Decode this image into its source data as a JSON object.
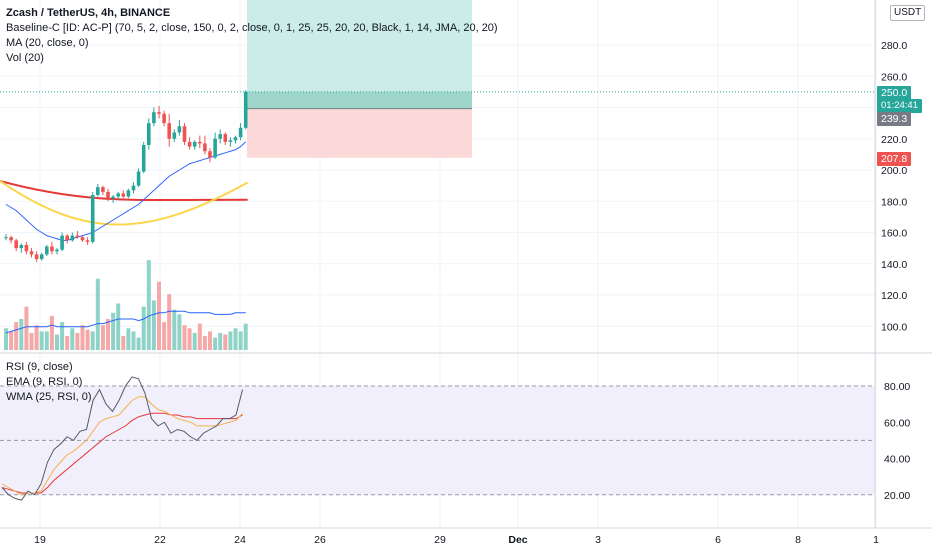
{
  "legend_main": {
    "symbol": "Zcash / TetherUS, 4h, BINANCE",
    "line2": "Baseline-C [ID: AC-P] (70, 5, 2, close, 150, 0, 2, close, 0, 1, 25, 25, 20, 20, Black, 1, 14, JMA, 20, 20)",
    "line3": "MA (20, close, 0)",
    "line4": "Vol (20)"
  },
  "legend_rsi": {
    "line1": "RSI (9, close)",
    "line2": "EMA (9, RSI, 0)",
    "line3": "WMA (25, RSI, 0)"
  },
  "currency": "USDT",
  "price_badges": {
    "current_price": "250.0",
    "countdown": "01:24:41",
    "level_239": "239.3",
    "level_207": "207.8"
  },
  "colors": {
    "up": "#26a69a",
    "down": "#ef5350",
    "vol_up": "#8fd3c8",
    "vol_down": "#f4a9a8",
    "ma": "#2962ff",
    "baseline_red": "#e53935",
    "baseline_yellow": "#fbd54a",
    "rsi": "#555a66",
    "rsi_ema": "#f4b24a",
    "rsi_wma": "#e53935",
    "profit_zone": "#cbece7",
    "loss_zone": "#fbd9d9"
  },
  "chart_data": {
    "type": "candlestick",
    "price_axis": {
      "ticks": [
        100,
        120,
        140,
        160,
        180,
        200,
        220,
        240,
        260,
        280
      ],
      "tick_labels": [
        "100.0",
        "120.0",
        "140.0",
        "160.0",
        "180.0",
        "200.0",
        "220.0",
        "240.0",
        "260.0",
        "280.0"
      ],
      "range": [
        90,
        304
      ]
    },
    "time_axis": {
      "labels": [
        "19",
        "22",
        "24",
        "26",
        "29",
        "Dec",
        "3",
        "6",
        "8",
        "1"
      ]
    },
    "candles": [
      [
        157,
        159,
        155,
        157
      ],
      [
        157,
        158,
        153,
        155
      ],
      [
        155,
        156,
        148,
        150
      ],
      [
        150,
        153,
        147,
        152
      ],
      [
        152,
        154,
        146,
        148
      ],
      [
        148,
        150,
        144,
        146
      ],
      [
        146,
        148,
        141,
        143
      ],
      [
        143,
        147,
        142,
        146
      ],
      [
        146,
        152,
        145,
        151
      ],
      [
        151,
        154,
        146,
        148
      ],
      [
        148,
        150,
        146,
        149
      ],
      [
        149,
        160,
        148,
        158
      ],
      [
        158,
        159,
        153,
        155
      ],
      [
        155,
        160,
        154,
        158
      ],
      [
        158,
        161,
        156,
        157
      ],
      [
        157,
        158,
        154,
        155
      ],
      [
        155,
        157,
        152,
        154
      ],
      [
        154,
        186,
        153,
        184
      ],
      [
        184,
        191,
        183,
        189
      ],
      [
        189,
        190,
        184,
        186
      ],
      [
        186,
        188,
        180,
        182
      ],
      [
        182,
        184,
        179,
        183
      ],
      [
        183,
        186,
        181,
        185
      ],
      [
        185,
        187,
        182,
        183
      ],
      [
        183,
        188,
        182,
        187
      ],
      [
        187,
        192,
        185,
        190
      ],
      [
        190,
        201,
        189,
        199
      ],
      [
        199,
        218,
        198,
        216
      ],
      [
        216,
        233,
        213,
        230
      ],
      [
        230,
        240,
        228,
        237
      ],
      [
        237,
        241,
        233,
        236
      ],
      [
        236,
        238,
        228,
        230
      ],
      [
        230,
        236,
        215,
        220
      ],
      [
        220,
        226,
        218,
        224
      ],
      [
        224,
        232,
        222,
        228
      ],
      [
        228,
        230,
        216,
        218
      ],
      [
        218,
        221,
        213,
        215
      ],
      [
        215,
        219,
        213,
        218
      ],
      [
        218,
        222,
        214,
        217
      ],
      [
        217,
        222,
        210,
        212
      ],
      [
        212,
        214,
        205,
        208
      ],
      [
        208,
        224,
        207,
        220
      ],
      [
        220,
        226,
        217,
        223
      ],
      [
        223,
        224,
        216,
        218
      ],
      [
        218,
        221,
        215,
        219
      ],
      [
        219,
        222,
        217,
        221
      ],
      [
        221,
        230,
        219,
        227
      ],
      [
        227,
        251,
        226,
        250
      ]
    ],
    "volume": [
      14,
      12,
      18,
      20,
      28,
      11,
      16,
      12,
      12,
      22,
      10,
      18,
      9,
      14,
      11,
      16,
      13,
      12,
      46,
      16,
      20,
      24,
      30,
      9,
      14,
      12,
      8,
      28,
      58,
      32,
      44,
      18,
      36,
      26,
      23,
      16,
      14,
      11,
      17,
      9,
      12,
      8,
      11,
      10,
      12,
      14,
      12,
      17
    ],
    "volume_ma": [
      11,
      12,
      13,
      14,
      15,
      15,
      15,
      15,
      15,
      16,
      15,
      15,
      15,
      15,
      15,
      15,
      15,
      16,
      17,
      17,
      18,
      19,
      20,
      20,
      20,
      20,
      19,
      20,
      22,
      23,
      24,
      24,
      25,
      25,
      25,
      25,
      24,
      24,
      24,
      24,
      24,
      23,
      23,
      23,
      23,
      24,
      24,
      24
    ],
    "ma20": [
      178,
      176,
      174,
      171,
      168,
      165,
      162,
      160,
      158,
      157,
      156,
      155,
      155,
      156,
      157,
      158,
      159,
      160,
      162,
      164,
      166,
      168,
      170,
      172,
      174,
      176,
      178,
      181,
      184,
      187,
      190,
      193,
      196,
      198,
      200,
      202,
      204,
      205,
      206,
      207,
      208,
      209,
      210,
      211,
      212,
      213,
      215,
      218
    ],
    "baseline_red": {
      "y_start": 193,
      "y_mid": 181,
      "y_end": 181
    },
    "baseline_yellow": {
      "y_start": 193,
      "y_min": 161,
      "y_end": 192
    },
    "position": {
      "entry": 239.3,
      "target": 250.0,
      "take_profit": 304,
      "stop": 207.8
    },
    "rsi_axis": {
      "ticks": [
        20,
        40,
        60,
        80
      ],
      "tick_labels": [
        "20.00",
        "40.00",
        "60.00",
        "80.00"
      ],
      "range": [
        10,
        94
      ],
      "bands": [
        20,
        80
      ]
    },
    "rsi": [
      24,
      20,
      18,
      17,
      22,
      20,
      26,
      38,
      45,
      48,
      52,
      50,
      55,
      56,
      72,
      78,
      70,
      66,
      72,
      80,
      85,
      84,
      76,
      62,
      58,
      60,
      54,
      56,
      55,
      52,
      50,
      54,
      56,
      58,
      62,
      62,
      64,
      78
    ],
    "rsi_ema": [
      26,
      24,
      22,
      20,
      21,
      21,
      22,
      28,
      34,
      38,
      42,
      44,
      47,
      50,
      55,
      60,
      62,
      63,
      64,
      68,
      72,
      74,
      74,
      70,
      67,
      66,
      64,
      62,
      61,
      60,
      58,
      58,
      58,
      58,
      59,
      60,
      61,
      65
    ],
    "rsi_wma": [
      24,
      23,
      22,
      21,
      21,
      21,
      21,
      24,
      28,
      31,
      34,
      37,
      40,
      43,
      46,
      49,
      52,
      54,
      56,
      58,
      61,
      63,
      64,
      65,
      65,
      65,
      64,
      64,
      63,
      63,
      62,
      62,
      62,
      62,
      62,
      62,
      62,
      64
    ]
  }
}
